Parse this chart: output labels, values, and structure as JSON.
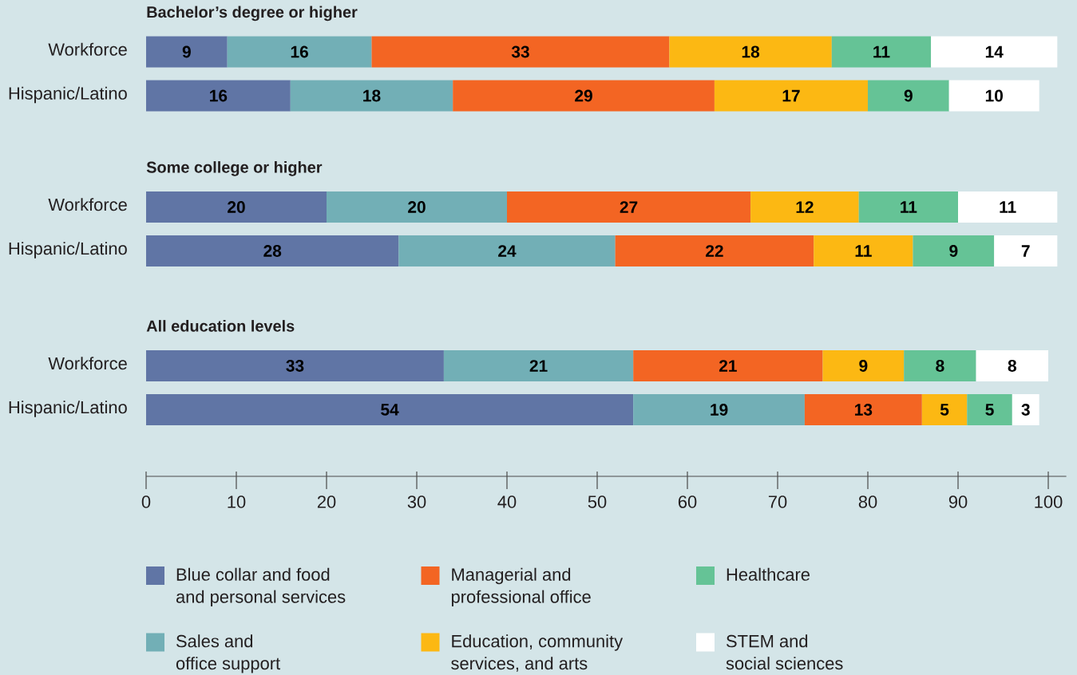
{
  "chart_data": [
    {
      "type": "bar",
      "orientation": "horizontal",
      "stacked": true,
      "title": "Bachelor’s degree or higher",
      "categories": [
        "Workforce",
        "Hispanic/Latino"
      ],
      "series": [
        {
          "color": "#6075a5",
          "values": [
            9,
            16
          ]
        },
        {
          "color": "#72afb6",
          "values": [
            16,
            18
          ]
        },
        {
          "color": "#f36523",
          "values": [
            33,
            29
          ]
        },
        {
          "color": "#fcb813",
          "values": [
            18,
            17
          ]
        },
        {
          "color": "#65c396",
          "values": [
            11,
            9
          ]
        },
        {
          "color": "#ffffff",
          "values": [
            14,
            10
          ]
        }
      ],
      "tick_labels": "y",
      "data_labels": true
    },
    {
      "type": "bar",
      "orientation": "horizontal",
      "stacked": true,
      "title": "Some college or higher",
      "categories": [
        "Workforce",
        "Hispanic/Latino"
      ],
      "series": [
        {
          "color": "#6075a5",
          "values": [
            20,
            28
          ]
        },
        {
          "color": "#72afb6",
          "values": [
            20,
            24
          ]
        },
        {
          "color": "#f36523",
          "values": [
            27,
            22
          ]
        },
        {
          "color": "#fcb813",
          "values": [
            12,
            11
          ]
        },
        {
          "color": "#65c396",
          "values": [
            11,
            9
          ]
        },
        {
          "color": "#ffffff",
          "values": [
            11,
            7
          ]
        }
      ],
      "tick_labels": "y",
      "data_labels": true
    },
    {
      "type": "bar",
      "orientation": "horizontal",
      "stacked": true,
      "title": "All education levels",
      "categories": [
        "Workforce",
        "Hispanic/Latino"
      ],
      "series": [
        {
          "name": "Blue collar and food and personal services",
          "color": "#6075a5",
          "values": [
            33,
            54
          ]
        },
        {
          "name": "Sales and office support",
          "color": "#72afb6",
          "values": [
            21,
            19
          ]
        },
        {
          "name": "Managerial and professional office",
          "color": "#f36523",
          "values": [
            21,
            13
          ]
        },
        {
          "name": "Education, community services, and arts",
          "color": "#fcb813",
          "values": [
            9,
            5
          ]
        },
        {
          "name": "Healthcare",
          "color": "#65c396",
          "values": [
            8,
            5
          ]
        },
        {
          "name": "STEM and social sciences",
          "color": "#ffffff",
          "values": [
            8,
            3
          ]
        }
      ],
      "xlim": [
        0,
        102
      ],
      "xticks": [
        0,
        10,
        20,
        30,
        40,
        50,
        60,
        70,
        80,
        90,
        100
      ],
      "legend": "bottom",
      "data_labels": true
    }
  ]
}
